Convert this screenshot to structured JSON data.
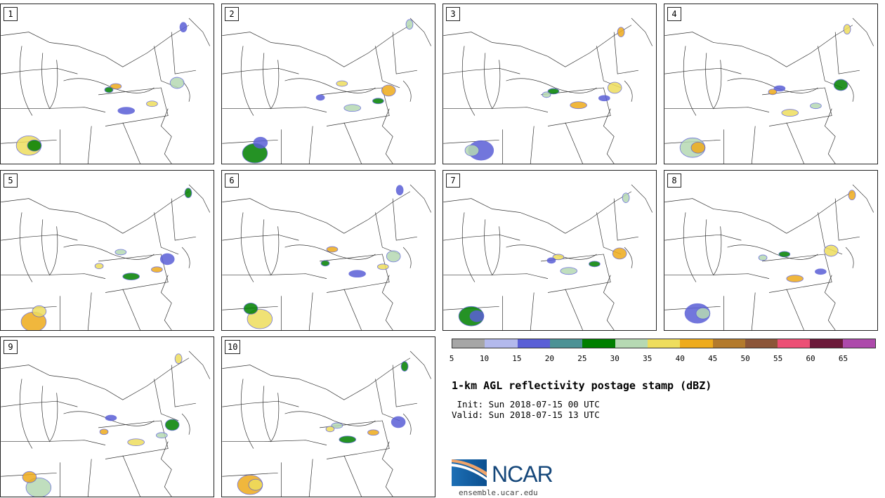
{
  "panels": [
    {
      "label": "1"
    },
    {
      "label": "2"
    },
    {
      "label": "3"
    },
    {
      "label": "4"
    },
    {
      "label": "5"
    },
    {
      "label": "6"
    },
    {
      "label": "7"
    },
    {
      "label": "8"
    },
    {
      "label": "9"
    },
    {
      "label": "10"
    }
  ],
  "colorbar": {
    "colors": [
      "#a6a6a6",
      "#b3b9ec",
      "#5a5fd6",
      "#4c9295",
      "#007f00",
      "#b6d9b3",
      "#eedd5d",
      "#eeab1c",
      "#b37a2c",
      "#8c5538",
      "#ec4f75",
      "#6c1a3a",
      "#ad4aab"
    ],
    "ticks": [
      "5",
      "10",
      "15",
      "20",
      "25",
      "30",
      "35",
      "40",
      "45",
      "50",
      "55",
      "60",
      "65"
    ]
  },
  "title": "1-km AGL reflectivity postage stamp (dBZ)",
  "init": " Init: Sun 2018-07-15 00 UTC",
  "valid": "Valid: Sun 2018-07-15 13 UTC",
  "logo": {
    "text": "NCAR",
    "url": "ensemble.ucar.edu"
  }
}
